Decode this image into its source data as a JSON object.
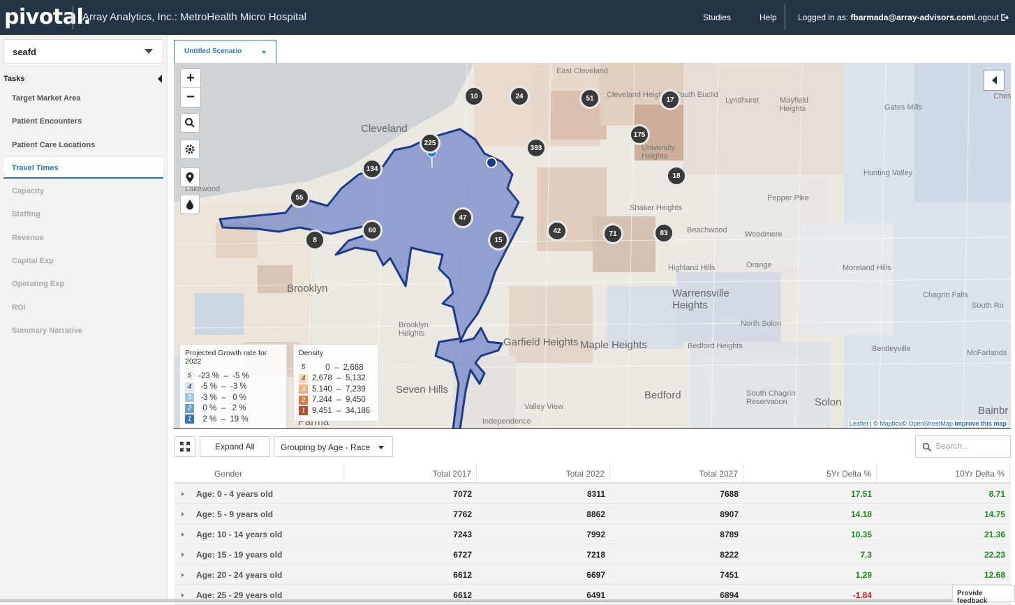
{
  "header": {
    "logo": "pivotal.",
    "title": "Array Analytics, Inc.: MetroHealth Micro Hospital",
    "nav_studies": "Studies",
    "nav_help": "Help",
    "logged_in_prefix": "Logged in as:",
    "user_email": "fbarmada@array-advisors.com",
    "logout": "Logout"
  },
  "sidebar": {
    "study_selected": "seafd",
    "tasks_title": "Tasks",
    "tasks": [
      {
        "label": "Target Market Area",
        "state": "enabled"
      },
      {
        "label": "Patient Encounters",
        "state": "enabled"
      },
      {
        "label": "Patient Care Locations",
        "state": "enabled"
      },
      {
        "label": "Travel Times",
        "state": "active"
      },
      {
        "label": "Capacity",
        "state": "disabled"
      },
      {
        "label": "Staffing",
        "state": "disabled"
      },
      {
        "label": "Revenue",
        "state": "disabled"
      },
      {
        "label": "Capital Exp",
        "state": "disabled"
      },
      {
        "label": "Operating Exp",
        "state": "disabled"
      },
      {
        "label": "ROI",
        "state": "disabled"
      },
      {
        "label": "Summary Narrative",
        "state": "disabled"
      }
    ]
  },
  "scenario": {
    "tab_label": "Untitled Scenario"
  },
  "map": {
    "zoom_in": "+",
    "zoom_out": "−",
    "clusters": [
      "10",
      "24",
      "51",
      "17",
      "175",
      "393",
      "225",
      "134",
      "18",
      "55",
      "47",
      "60",
      "8",
      "42",
      "15",
      "71",
      "83"
    ],
    "places": {
      "cleveland": "Cleveland",
      "east_cleveland": "East Cleveland",
      "cleveland_heights": "Cleveland Heights",
      "south_euclid": "South Euclid",
      "lyndhurst": "Lyndhurst",
      "mayfield_heights": "Mayfield Heights",
      "gates_mills": "Gates Mills",
      "university_heights": "University Heights",
      "hunting_valley": "Hunting Valley",
      "pepper_pike": "Pepper Pike",
      "shaker_heights": "Shaker Heights",
      "beachwood": "Beachwood",
      "lakewood": "Lakewood",
      "highland_hills": "Highland Hills",
      "moreland_hills": "Moreland Hills",
      "warrensville_heights": "Warrensville Heights",
      "brooklyn": "Brooklyn",
      "brooklyn_heights": "Brooklyn Heights",
      "garfield_heights": "Garfield Heights",
      "maple_heights": "Maple Heights",
      "bedford_heights": "Bedford Heights",
      "bentleyville": "Bentleyville",
      "seven_hills": "Seven Hills",
      "valley_view": "Valley View",
      "bedford": "Bedford",
      "south_chagrin": "South Chagrin Reservation",
      "solon": "Solon",
      "north_solon": "North Solon",
      "chagrin_falls": "Chagrin Falls",
      "south_russell": "South Ru",
      "mcfarlands": "McFarlands",
      "bainbridge": "Bainbr",
      "chester": "Chester",
      "orange": "Orange",
      "woodmere": "Woodmere",
      "independence": "Independence",
      "parma": "Parma"
    },
    "growth_legend": {
      "title": "Projected Growth rate for 2022",
      "rows": [
        {
          "k": "5",
          "range": "-23 %  –  -5 %",
          "color": "#f4f4f4"
        },
        {
          "k": "4",
          "range": " -5 %  –  -3 %",
          "color": "#dae6f0"
        },
        {
          "k": "3",
          "range": " -3 %  –   0 %",
          "color": "#a5c4df"
        },
        {
          "k": "2",
          "range": "  0 %  –   2 %",
          "color": "#6d9fcd"
        },
        {
          "k": "1",
          "range": "  2 %  –  19 %",
          "color": "#3a73b5"
        }
      ]
    },
    "density_legend": {
      "title": "Density",
      "rows": [
        {
          "k": "5",
          "range": "      0  –  2,668",
          "color": "#f4f4f4"
        },
        {
          "k": "4",
          "range": "2,678  –  5,132",
          "color": "#f7d9b8"
        },
        {
          "k": "3",
          "range": "5,140  –  7,239",
          "color": "#f1b07a"
        },
        {
          "k": "2",
          "range": "7,244  –  9,450",
          "color": "#d97a47"
        },
        {
          "k": "1",
          "range": "9,451  –  34,186",
          "color": "#b1532f"
        }
      ]
    },
    "attribution": {
      "leaflet": "Leaflet",
      "sep": " | © ",
      "mapbox": "Mapbox",
      "osm_prefix": "© ",
      "osm": "OpenStreetMap",
      "improve": "Improve this map"
    }
  },
  "table_toolbar": {
    "expand_all": "Expand All",
    "grouping": "Grouping by Age - Race",
    "search_placeholder": "Search..."
  },
  "table": {
    "columns": [
      "Gender",
      "Total 2017",
      "Total 2022",
      "Total 2027",
      "5Yr Delta %",
      "10Yr Delta %"
    ],
    "rows": [
      {
        "label": "Age: 0 - 4 years old",
        "t2017": "7072",
        "t2022": "8311",
        "t2027": "7688",
        "d5": "17.51",
        "d10": "8.71"
      },
      {
        "label": "Age: 5 - 9 years old",
        "t2017": "7762",
        "t2022": "8862",
        "t2027": "8907",
        "d5": "14.18",
        "d10": "14.75"
      },
      {
        "label": "Age: 10 - 14 years old",
        "t2017": "7243",
        "t2022": "7992",
        "t2027": "8789",
        "d5": "10.35",
        "d10": "21.36"
      },
      {
        "label": "Age: 15 - 19 years old",
        "t2017": "6727",
        "t2022": "7218",
        "t2027": "8222",
        "d5": "7.3",
        "d10": "22.23"
      },
      {
        "label": "Age: 20 - 24 years old",
        "t2017": "6612",
        "t2022": "6697",
        "t2027": "7451",
        "d5": "1.29",
        "d10": "12.68"
      },
      {
        "label": "Age: 25 - 29 years old",
        "t2017": "6612",
        "t2022": "6491",
        "t2027": "6894",
        "d5": "-1.84",
        "d10": ""
      }
    ]
  },
  "feedback": "Provide feedback"
}
